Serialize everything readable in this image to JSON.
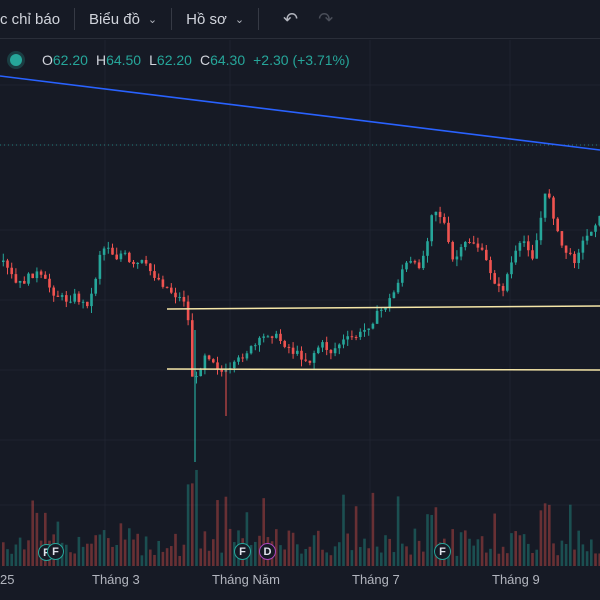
{
  "toolbar": {
    "indicators_label": "c chỉ báo",
    "chart_label": "Biểu đồ",
    "templates_label": "Hồ sơ",
    "undo_icon": "undo-icon",
    "redo_icon": "redo-icon"
  },
  "ohlc": {
    "open_key": "O",
    "open": "62.20",
    "high_key": "H",
    "high": "64.50",
    "low_key": "L",
    "low": "62.20",
    "close_key": "C",
    "close": "64.30",
    "change": "+2.30 (+3.71%)"
  },
  "colors": {
    "up": "#26a69a",
    "down": "#ef5350",
    "trendline": "#2962ff",
    "support": "#f5e6a8",
    "background": "#161a25"
  },
  "x_axis": {
    "labels": [
      "25",
      "Tháng 3",
      "Tháng Năm",
      "Tháng 7",
      "Tháng 9"
    ]
  },
  "events": [
    {
      "letter": "F"
    },
    {
      "letter": "F"
    },
    {
      "letter": "F"
    },
    {
      "letter": "D"
    },
    {
      "letter": "F"
    }
  ],
  "chart_data": {
    "type": "candlestick",
    "support_levels": [
      58.6,
      54.8
    ],
    "last_candle": {
      "open": 62.2,
      "high": 64.5,
      "low": 62.2,
      "close": 64.3
    }
  }
}
